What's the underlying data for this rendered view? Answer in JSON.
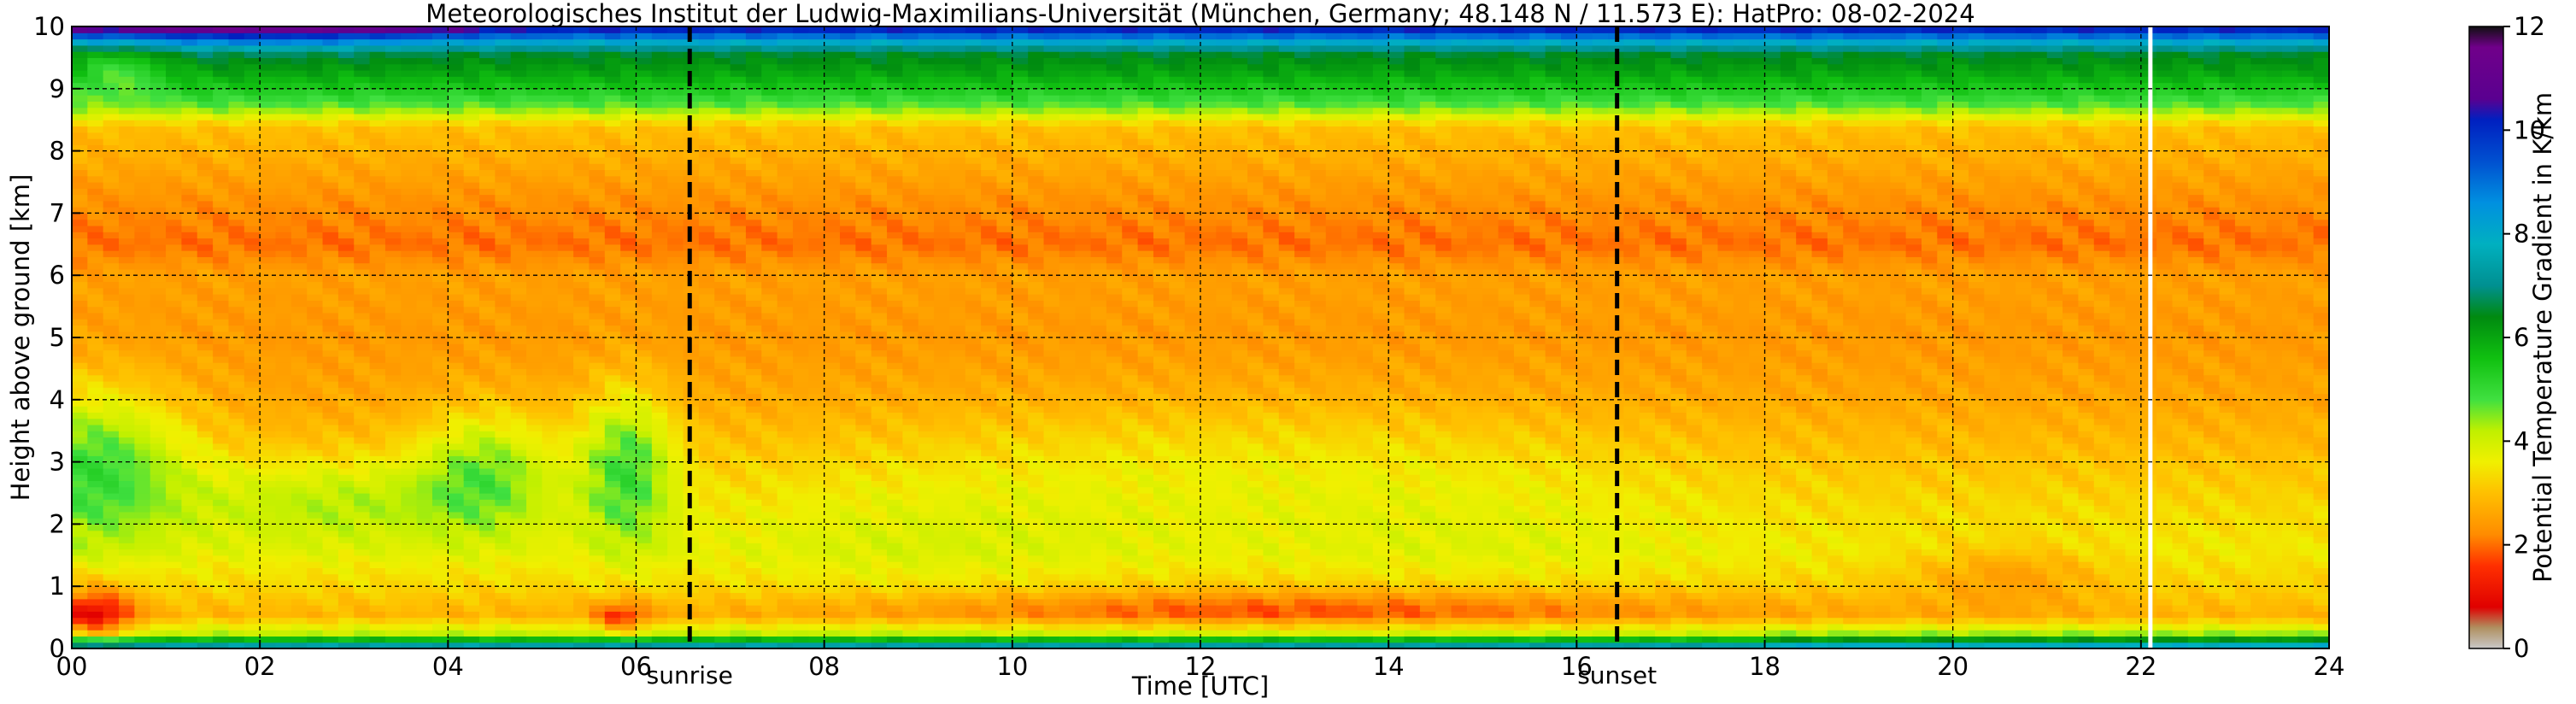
{
  "chart_data": {
    "type": "heatmap",
    "title": "Meteorologisches Institut der Ludwig-Maximilians-Universität (München, Germany; 48.148 N / 11.573 E):    HatPro: 08-02-2024",
    "xlabel": "Time [UTC]",
    "ylabel": "Height above ground [km]",
    "xlim": [
      0,
      24
    ],
    "ylim": [
      0,
      10
    ],
    "x_ticks": [
      "00",
      "02",
      "04",
      "06",
      "08",
      "10",
      "12",
      "14",
      "16",
      "18",
      "20",
      "22",
      "24"
    ],
    "y_ticks": [
      "0",
      "1",
      "2",
      "3",
      "4",
      "5",
      "6",
      "7",
      "8",
      "9",
      "10"
    ],
    "grid": true,
    "colorbar": {
      "label": "Potential Temperature Gradient in K/km",
      "range": [
        0,
        12
      ],
      "ticks": [
        "0",
        "2",
        "4",
        "6",
        "8",
        "10",
        "12"
      ],
      "colors": [
        [
          0.0,
          "#c8c8c8"
        ],
        [
          0.4,
          "#b09060"
        ],
        [
          0.8,
          "#e00000"
        ],
        [
          1.6,
          "#ff3000"
        ],
        [
          2.2,
          "#ff8c00"
        ],
        [
          3.0,
          "#ffc000"
        ],
        [
          3.6,
          "#f0f000"
        ],
        [
          4.2,
          "#c0f000"
        ],
        [
          4.8,
          "#40e040"
        ],
        [
          5.6,
          "#10c010"
        ],
        [
          6.4,
          "#008a10"
        ],
        [
          7.0,
          "#009090"
        ],
        [
          7.8,
          "#00b0c0"
        ],
        [
          8.6,
          "#0090e0"
        ],
        [
          9.4,
          "#0050d0"
        ],
        [
          10.2,
          "#0020c0"
        ],
        [
          10.6,
          "#5a0090"
        ],
        [
          11.6,
          "#70008a"
        ],
        [
          12.0,
          "#101010"
        ]
      ]
    },
    "annotations": [
      {
        "text": "sunrise",
        "x": 6.57
      },
      {
        "text": "sunset",
        "x": 16.43
      }
    ],
    "missing_data_at": 22.1,
    "profile": [
      [
        0.0,
        8.0
      ],
      [
        0.1,
        6.2
      ],
      [
        0.25,
        4.0
      ],
      [
        0.55,
        2.8
      ],
      [
        1.0,
        3.2
      ],
      [
        1.6,
        3.5
      ],
      [
        2.2,
        3.3
      ],
      [
        3.0,
        3.0
      ],
      [
        4.0,
        2.6
      ],
      [
        5.0,
        2.4
      ],
      [
        6.0,
        2.5
      ],
      [
        6.5,
        2.0
      ],
      [
        7.2,
        2.3
      ],
      [
        7.9,
        2.7
      ],
      [
        8.4,
        3.0
      ],
      [
        8.7,
        4.6
      ],
      [
        9.2,
        5.9
      ],
      [
        9.6,
        6.6
      ],
      [
        9.85,
        9.0
      ],
      [
        10.0,
        10.6
      ]
    ]
  }
}
